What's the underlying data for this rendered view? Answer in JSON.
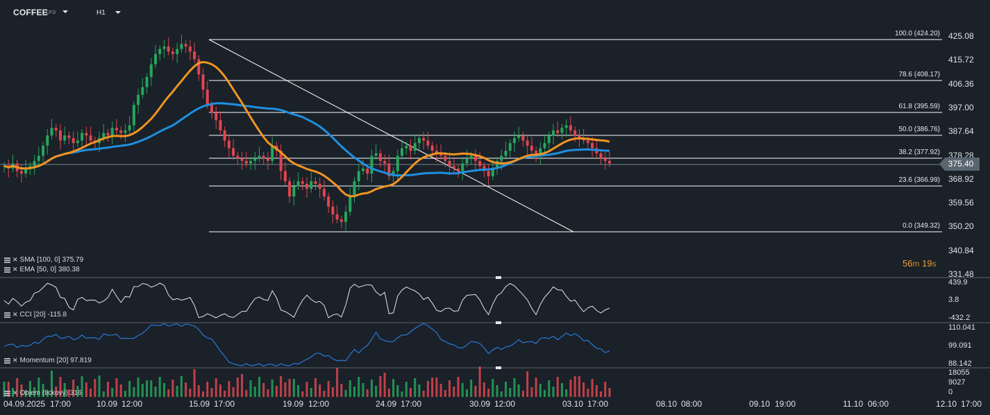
{
  "header": {
    "symbol": "COFFEE",
    "symbol_type": "CFD",
    "timeframe": "H1"
  },
  "price_axis": [
    "425.08",
    "415.72",
    "406.36",
    "397.00",
    "387.64",
    "378.28",
    "368.92",
    "359.56",
    "350.20",
    "340.84",
    "331.48"
  ],
  "current_price": "375.40",
  "countdown": {
    "minutes": "56",
    "m": "m",
    "seconds": "19",
    "s": "s"
  },
  "fib_levels": [
    "100.0 (424.20)",
    "78.6 (408.17)",
    "61.8 (395.59)",
    "50.0 (386.76)",
    "38.2 (377.92)",
    "23.6 (366.99)",
    "0.0 (349.32)"
  ],
  "indicators": {
    "sma": {
      "name": "SMA",
      "params": "[100,  0]",
      "value": "375.79"
    },
    "ema": {
      "name": "EMA",
      "params": "[50,  0]",
      "value": "380.38"
    },
    "cci": {
      "name": "CCI",
      "params": "[20]",
      "value": "-115.8",
      "axis": [
        "439.9",
        "3.8",
        "-432.2"
      ]
    },
    "momentum": {
      "name": "Momentum",
      "params": "[20]",
      "value": "97.819",
      "axis": [
        "110.041",
        "99.091",
        "88.142"
      ]
    },
    "volume": {
      "name": "Objem (tickový)",
      "value": "316",
      "axis": [
        "18055",
        "9027",
        "0"
      ]
    }
  },
  "time_axis": [
    "04.09.2025",
    "17:00",
    "10.09",
    "12:00",
    "15.09",
    "17:00",
    "19.09",
    "12:00",
    "24.09",
    "17:00",
    "30.09",
    "12:00",
    "03.10",
    "17:00",
    "08.10",
    "08:00",
    "09.10",
    "19:00",
    "11.10",
    "06:00",
    "12.10",
    "17:00"
  ],
  "colors": {
    "background": "#1a2129",
    "up_candle": "#26a65b",
    "down_candle": "#e0454f",
    "sma_line": "#1e90e0",
    "ema_line": "#f29422",
    "fib_line": "#ffffff",
    "momentum_line": "#2a78d6",
    "cci_line": "#e6e6e6",
    "countdown": "#f0a030"
  },
  "chart_data": {
    "type": "candlestick",
    "y_range": [
      331.48,
      425.08
    ],
    "closes": [
      374,
      373,
      375,
      372,
      371,
      373,
      374,
      376,
      378,
      382,
      386,
      389,
      388,
      384,
      386,
      385,
      383,
      384,
      387,
      386,
      384,
      383,
      385,
      387,
      386,
      389,
      388,
      387,
      388,
      390,
      398,
      402,
      405,
      409,
      414,
      418,
      420,
      421,
      419,
      418,
      420,
      422,
      421,
      419,
      416,
      410,
      404,
      398,
      395,
      392,
      388,
      384,
      381,
      378,
      377,
      376,
      375,
      376,
      377,
      378,
      377,
      376,
      382,
      380,
      372,
      368,
      362,
      366,
      368,
      367,
      365,
      368,
      367,
      365,
      362,
      358,
      355,
      353,
      352,
      356,
      362,
      368,
      372,
      373,
      371,
      378,
      379,
      376,
      375,
      370,
      372,
      378,
      381,
      382,
      380,
      383,
      385,
      384,
      382,
      380,
      379,
      378,
      376,
      374,
      373,
      372,
      375,
      377,
      378,
      376,
      374,
      372,
      370,
      373,
      376,
      378,
      380,
      383,
      385,
      386,
      384,
      382,
      380,
      378,
      381,
      383,
      386,
      388,
      387,
      389,
      390,
      388,
      386,
      385,
      384,
      383,
      381,
      379,
      377,
      376,
      375
    ]
  }
}
